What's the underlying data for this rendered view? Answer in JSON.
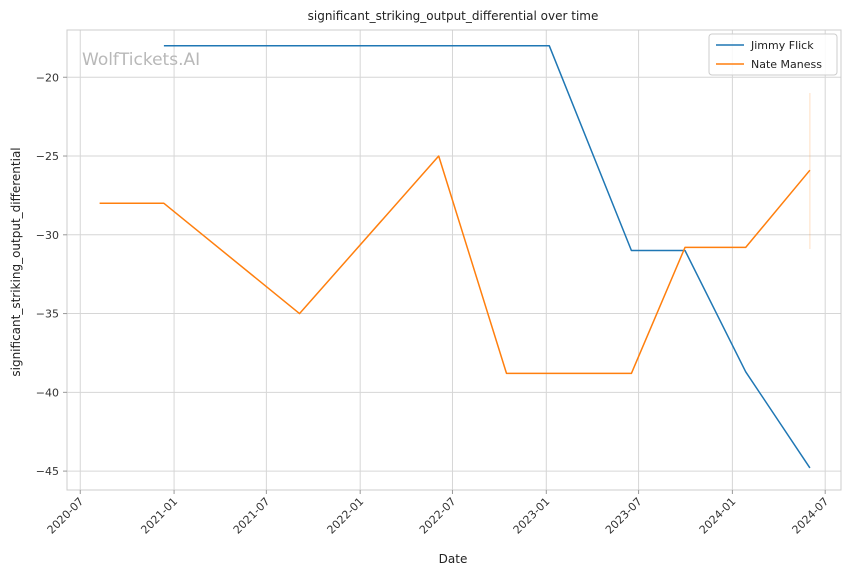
{
  "chart_data": {
    "type": "line",
    "title": "significant_striking_output_differential over time",
    "xlabel": "Date",
    "ylabel": "significant_striking_output_differential",
    "watermark": "WolfTickets.AI",
    "x_ticks": [
      "2020-07",
      "2021-01",
      "2021-07",
      "2022-01",
      "2022-07",
      "2023-01",
      "2023-07",
      "2024-01",
      "2024-07"
    ],
    "y_ticks": [
      -20,
      -25,
      -30,
      -35,
      -40,
      -45
    ],
    "xlim": [
      "2020-06-05",
      "2024-08-01"
    ],
    "ylim": [
      -46.2,
      -17.0
    ],
    "grid": true,
    "legend_position": "top-right",
    "series": [
      {
        "name": "Jimmy Flick",
        "color": "#1f77b4",
        "points": [
          {
            "x": "2020-12-12",
            "y": -18.0
          },
          {
            "x": "2023-01-07",
            "y": -18.0
          },
          {
            "x": "2023-06-17",
            "y": -31.0
          },
          {
            "x": "2023-09-30",
            "y": -31.0
          },
          {
            "x": "2024-01-27",
            "y": -38.7
          },
          {
            "x": "2024-06-01",
            "y": -44.8
          }
        ]
      },
      {
        "name": "Nate Maness",
        "color": "#ff7f0e",
        "points": [
          {
            "x": "2020-08-08",
            "y": -28.0
          },
          {
            "x": "2020-12-12",
            "y": -28.0
          },
          {
            "x": "2021-09-04",
            "y": -35.0
          },
          {
            "x": "2022-06-04",
            "y": -25.0
          },
          {
            "x": "2022-10-15",
            "y": -38.8
          },
          {
            "x": "2023-06-17",
            "y": -38.8
          },
          {
            "x": "2023-09-30",
            "y": -30.8
          },
          {
            "x": "2024-01-27",
            "y": -30.8
          },
          {
            "x": "2024-06-01",
            "y": -25.9
          }
        ]
      }
    ],
    "error_bar": {
      "x": "2024-06-01",
      "y_low": -30.9,
      "y_high": -21.0,
      "color": "#ff7f0e"
    }
  }
}
